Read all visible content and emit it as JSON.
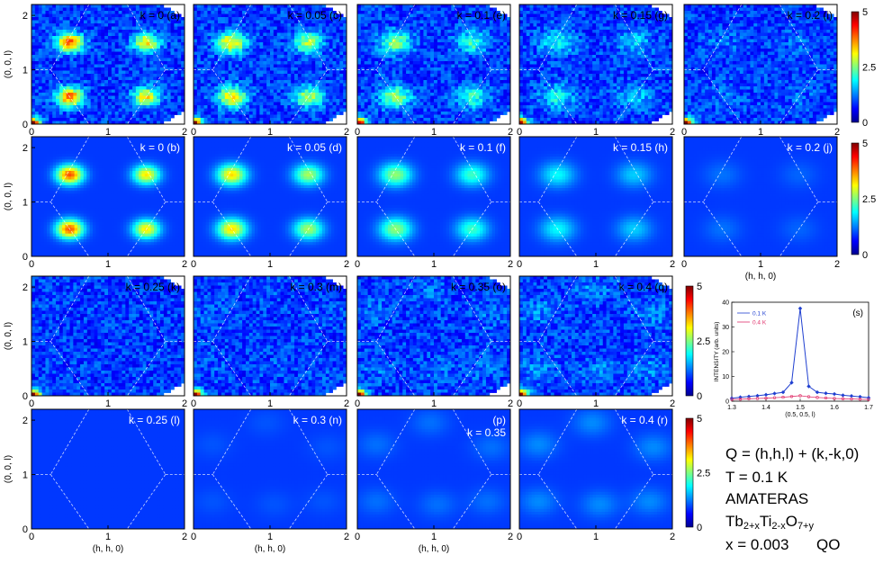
{
  "chart_data": [
    {
      "type": "heatmap",
      "panels": [
        {
          "id": "a",
          "row": 0,
          "col": 0,
          "kind": "measured",
          "label": "k = 0 (a)",
          "k": 0
        },
        {
          "id": "c",
          "row": 0,
          "col": 1,
          "kind": "measured",
          "label": "k = 0.05 (c)",
          "k": 0.05
        },
        {
          "id": "e",
          "row": 0,
          "col": 2,
          "kind": "measured",
          "label": "k = 0.1 (e)",
          "k": 0.1
        },
        {
          "id": "g",
          "row": 0,
          "col": 3,
          "kind": "measured",
          "label": "k = 0.15 (g)",
          "k": 0.15
        },
        {
          "id": "i",
          "row": 0,
          "col": 4,
          "kind": "measured",
          "label": "k = 0.2 (i)",
          "k": 0.2
        },
        {
          "id": "b",
          "row": 1,
          "col": 0,
          "kind": "model",
          "label": "k = 0 (b)",
          "k": 0
        },
        {
          "id": "d",
          "row": 1,
          "col": 1,
          "kind": "model",
          "label": "k = 0.05 (d)",
          "k": 0.05
        },
        {
          "id": "f",
          "row": 1,
          "col": 2,
          "kind": "model",
          "label": "k = 0.1 (f)",
          "k": 0.1
        },
        {
          "id": "h",
          "row": 1,
          "col": 3,
          "kind": "model",
          "label": "k = 0.15 (h)",
          "k": 0.15
        },
        {
          "id": "j",
          "row": 1,
          "col": 4,
          "kind": "model",
          "label": "k = 0.2 (j)",
          "k": 0.2
        },
        {
          "id": "k",
          "row": 2,
          "col": 0,
          "kind": "measured",
          "label": "k = 0.25 (k)",
          "k": 0.25
        },
        {
          "id": "m",
          "row": 2,
          "col": 1,
          "kind": "measured",
          "label": "k = 0.3 (m)",
          "k": 0.3
        },
        {
          "id": "o",
          "row": 2,
          "col": 2,
          "kind": "measured",
          "label": "k = 0.35 (o)",
          "k": 0.35
        },
        {
          "id": "q",
          "row": 2,
          "col": 3,
          "kind": "measured",
          "label": "k = 0.4 (q)",
          "k": 0.4
        },
        {
          "id": "l",
          "row": 3,
          "col": 0,
          "kind": "model",
          "label": "k = 0.25 (l)",
          "k": 0.25
        },
        {
          "id": "n",
          "row": 3,
          "col": 1,
          "kind": "model",
          "label": "k = 0.3 (n)",
          "k": 0.3
        },
        {
          "id": "p",
          "row": 3,
          "col": 2,
          "kind": "model",
          "label": "(p)",
          "label2": "k = 0.35",
          "k": 0.35
        },
        {
          "id": "r",
          "row": 3,
          "col": 3,
          "kind": "model",
          "label": "k = 0.4 (r)",
          "k": 0.4
        }
      ],
      "x_range": [
        0,
        2
      ],
      "y_range": [
        0,
        2.2
      ],
      "x_ticks": [
        "0",
        "1",
        "2"
      ],
      "y_ticks": [
        "0",
        "1",
        "2"
      ],
      "xlabel": "(h, h, 0)",
      "ylabel": "(0, 0, l)",
      "colorbar": {
        "min": 0,
        "max": 5,
        "ticks": [
          "5",
          "2.5",
          "0"
        ],
        "colormap": "jet"
      },
      "peaks": [
        [
          0.5,
          0.5
        ],
        [
          0.5,
          1.5
        ],
        [
          1.5,
          0.5
        ],
        [
          1.5,
          1.5
        ]
      ]
    },
    {
      "type": "line",
      "label": "(s)",
      "xlabel": "(0.5, 0.5, l)",
      "ylabel": "INTENSITY (arb. units)",
      "xlim": [
        1.3,
        1.7
      ],
      "ylim": [
        0,
        40
      ],
      "x_ticks": [
        "1.3",
        "1.4",
        "1.5",
        "1.6",
        "1.7"
      ],
      "y_ticks": [
        "0",
        "10",
        "20",
        "30",
        "40"
      ],
      "legend_position": "top-left",
      "x": [
        1.3,
        1.325,
        1.35,
        1.375,
        1.4,
        1.425,
        1.45,
        1.475,
        1.5,
        1.525,
        1.55,
        1.575,
        1.6,
        1.625,
        1.65,
        1.675,
        1.7
      ],
      "series": [
        {
          "name": "0.1 K",
          "color": "#1f3fd0",
          "marker": "diamond",
          "values": [
            1.2,
            1.6,
            1.9,
            2.2,
            2.6,
            3.1,
            3.6,
            7.5,
            37.5,
            6.0,
            3.6,
            3.2,
            2.9,
            2.4,
            2.1,
            1.8,
            1.4
          ]
        },
        {
          "name": "0.4 K",
          "color": "#e0306a",
          "marker": "circle",
          "values": [
            0.7,
            0.8,
            1.0,
            1.1,
            1.2,
            1.4,
            1.6,
            1.9,
            2.2,
            1.8,
            1.5,
            1.3,
            1.1,
            1.0,
            0.9,
            0.8,
            0.7
          ]
        }
      ]
    }
  ],
  "info": {
    "q_line": "Q = (h,h,l) + (k,-k,0)",
    "t_line": "T = 0.1 K",
    "instrument": "AMATERAS",
    "formula": {
      "p1": "Tb",
      "s1": "2+x",
      "p2": "Ti",
      "s2": "2-x",
      "p3": "O",
      "s3": "7+y"
    },
    "x_line": "x = 0.003",
    "qo": "QO"
  }
}
